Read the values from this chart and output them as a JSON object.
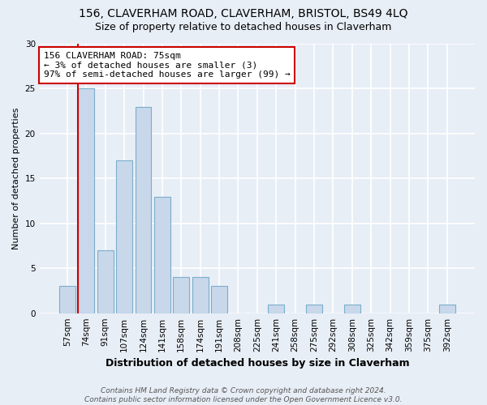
{
  "title1": "156, CLAVERHAM ROAD, CLAVERHAM, BRISTOL, BS49 4LQ",
  "title2": "Size of property relative to detached houses in Claverham",
  "xlabel": "Distribution of detached houses by size in Claverham",
  "ylabel": "Number of detached properties",
  "categories": [
    "57sqm",
    "74sqm",
    "91sqm",
    "107sqm",
    "124sqm",
    "141sqm",
    "158sqm",
    "174sqm",
    "191sqm",
    "208sqm",
    "225sqm",
    "241sqm",
    "258sqm",
    "275sqm",
    "292sqm",
    "308sqm",
    "325sqm",
    "342sqm",
    "359sqm",
    "375sqm",
    "392sqm"
  ],
  "values": [
    3,
    25,
    7,
    17,
    23,
    13,
    4,
    4,
    3,
    0,
    0,
    1,
    0,
    1,
    0,
    1,
    0,
    0,
    0,
    0,
    1
  ],
  "bar_color": "#c8d8ea",
  "bar_edge_color": "#7aaecc",
  "vline_color": "#cc0000",
  "annotation_text": "156 CLAVERHAM ROAD: 75sqm\n← 3% of detached houses are smaller (3)\n97% of semi-detached houses are larger (99) →",
  "annotation_box_color": "#ffffff",
  "annotation_box_edge_color": "#cc0000",
  "ylim": [
    0,
    30
  ],
  "yticks": [
    0,
    5,
    10,
    15,
    20,
    25,
    30
  ],
  "footnote": "Contains HM Land Registry data © Crown copyright and database right 2024.\nContains public sector information licensed under the Open Government Licence v3.0.",
  "bg_color": "#e8eef6",
  "plot_bg_color": "#e8eef6",
  "grid_color": "#ffffff",
  "title1_fontsize": 10,
  "title2_fontsize": 9,
  "xlabel_fontsize": 9,
  "ylabel_fontsize": 8,
  "tick_fontsize": 7.5,
  "annotation_fontsize": 8,
  "footnote_fontsize": 6.5
}
